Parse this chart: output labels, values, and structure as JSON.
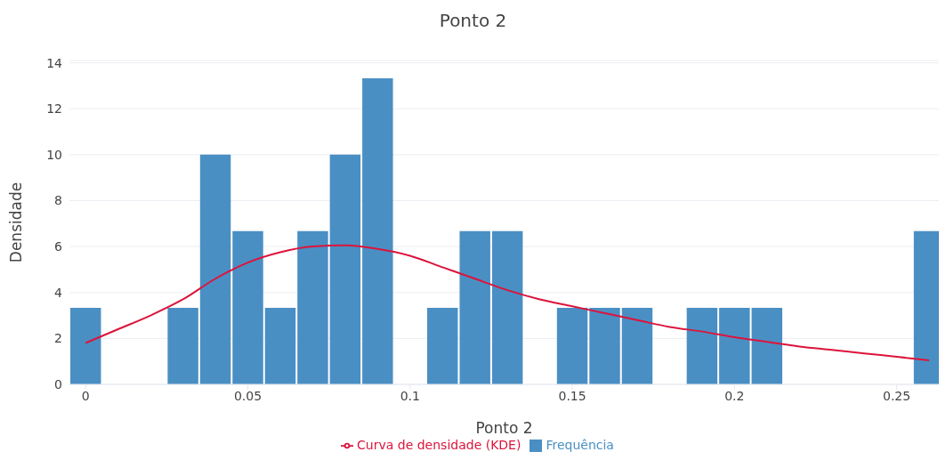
{
  "chart_data": {
    "type": "histogram",
    "title": "Ponto 2",
    "xlabel": "Ponto 2",
    "ylabel": "Densidade",
    "bins": [
      -0.005,
      0.005,
      0.015,
      0.025,
      0.035,
      0.045,
      0.055,
      0.065,
      0.075,
      0.085,
      0.095,
      0.105,
      0.115,
      0.125,
      0.135,
      0.145,
      0.155,
      0.165,
      0.175,
      0.185,
      0.195,
      0.205,
      0.215,
      0.225,
      0.235,
      0.245,
      0.255,
      0.265
    ],
    "series": [
      {
        "name": "Frequência",
        "color": "#4a8fc3",
        "values": [
          3.33,
          0,
          0,
          3.33,
          10,
          6.67,
          3.33,
          6.67,
          10,
          13.33,
          0,
          3.33,
          6.67,
          6.67,
          0,
          3.33,
          3.33,
          3.33,
          0,
          3.33,
          3.33,
          3.33,
          0,
          0,
          0,
          0,
          6.67
        ]
      },
      {
        "name": "Curva de densidade (KDE)",
        "type": "line",
        "color": "#dc143c",
        "x": [
          0,
          0.01,
          0.02,
          0.03,
          0.04,
          0.05,
          0.06,
          0.07,
          0.08,
          0.09,
          0.1,
          0.11,
          0.12,
          0.13,
          0.14,
          0.15,
          0.16,
          0.17,
          0.18,
          0.19,
          0.2,
          0.21,
          0.22,
          0.23,
          0.24,
          0.25,
          0.26
        ],
        "values": [
          1.8,
          2.4,
          3.0,
          3.7,
          4.6,
          5.3,
          5.75,
          6.0,
          6.05,
          5.9,
          5.6,
          5.1,
          4.6,
          4.1,
          3.7,
          3.4,
          3.1,
          2.8,
          2.5,
          2.3,
          2.05,
          1.85,
          1.65,
          1.5,
          1.35,
          1.2,
          1.05
        ]
      }
    ],
    "xlim": [
      -0.005,
      0.263
    ],
    "xticks": [
      0,
      0.05,
      0.1,
      0.15,
      0.2,
      0.25
    ],
    "ylim": [
      0,
      14.1
    ],
    "yticks": [
      0,
      2,
      4,
      6,
      8,
      10,
      12,
      14
    ],
    "grid": "y",
    "legend": "bottom"
  }
}
